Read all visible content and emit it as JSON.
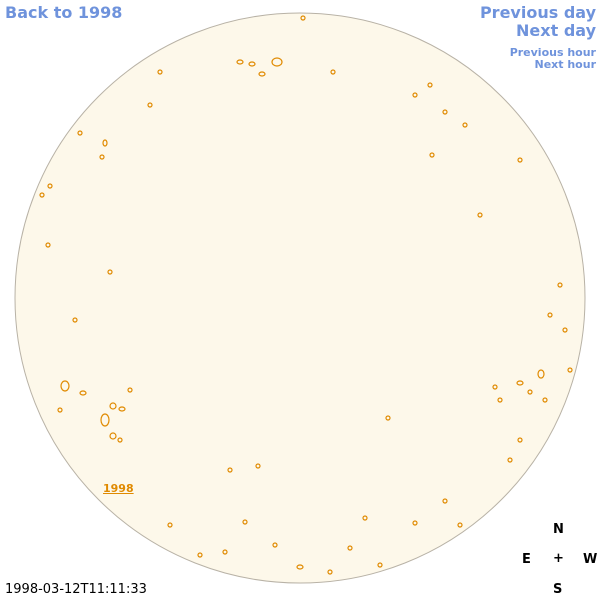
{
  "nav": {
    "back": "Back to 1998",
    "previous_day": "Previous day",
    "next_day": "Next day",
    "previous_hour": "Previous hour",
    "next_hour": "Next hour"
  },
  "marker_label": "1998",
  "timestamp": "1998-03-12T11:11:33",
  "compass": {
    "north": "N",
    "east": "E",
    "center": "+",
    "west": "W",
    "south": "S"
  }
}
